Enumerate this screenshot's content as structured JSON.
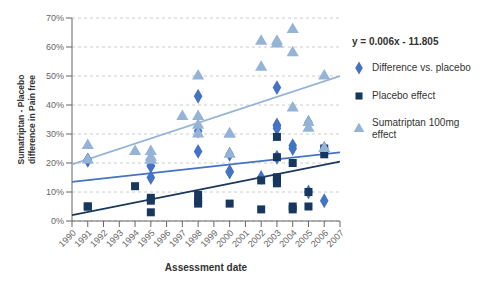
{
  "chart_data": {
    "type": "scatter",
    "xlabel": "Assessment date",
    "ylabel": "Sumatriptan - Placebo difference in Pain free",
    "xlim": [
      1990,
      2007
    ],
    "xticks": [
      1990,
      1991,
      1992,
      1993,
      1994,
      1995,
      1996,
      1997,
      1998,
      1999,
      2000,
      2001,
      2002,
      2003,
      2004,
      2005,
      2006,
      2007
    ],
    "ylim": [
      0,
      0.7
    ],
    "yticks": [
      {
        "value": 0.0,
        "label": "0%"
      },
      {
        "value": 0.1,
        "label": "10%"
      },
      {
        "value": 0.2,
        "label": "20%"
      },
      {
        "value": 0.3,
        "label": "30%"
      },
      {
        "value": 0.4,
        "label": "40%"
      },
      {
        "value": 0.5,
        "label": "50%"
      },
      {
        "value": 0.6,
        "label": "60%"
      },
      {
        "value": 0.7,
        "label": "70%"
      }
    ],
    "grid": true,
    "legend": "right",
    "annotations": [
      "y = 0.006x - 11.805"
    ],
    "series": [
      {
        "name": "Difference vs. placebo",
        "color": "#4472c4",
        "marker": "diamond",
        "x": [
          1991,
          1991,
          1995,
          1995,
          1995,
          1995,
          1998,
          1998,
          1998,
          2000,
          2000,
          2000,
          2002,
          2003,
          2003,
          2003,
          2003,
          2003,
          2004,
          2004,
          2005,
          2005,
          2006,
          2006
        ],
        "values": [
          0.21,
          0.21,
          0.21,
          0.15,
          0.19,
          0.19,
          0.43,
          0.31,
          0.24,
          0.17,
          0.17,
          0.23,
          0.15,
          0.33,
          0.33,
          0.32,
          0.22,
          0.46,
          0.26,
          0.25,
          0.34,
          0.1,
          0.25,
          0.07
        ]
      },
      {
        "name": "Placebo effect",
        "color": "#17375e",
        "marker": "square",
        "x": [
          1991,
          1991,
          1994,
          1995,
          1995,
          1995,
          1998,
          1998,
          1998,
          2000,
          2002,
          2002,
          2003,
          2003,
          2003,
          2003,
          2003,
          2003,
          2004,
          2004,
          2004,
          2005,
          2005,
          2006,
          2006
        ],
        "values": [
          0.05,
          0.05,
          0.12,
          0.08,
          0.07,
          0.03,
          0.09,
          0.07,
          0.06,
          0.06,
          0.04,
          0.14,
          0.13,
          0.29,
          0.14,
          0.15,
          0.22,
          0.15,
          0.2,
          0.05,
          0.04,
          0.05,
          0.1,
          0.23,
          0.25
        ]
      },
      {
        "name": "Sumatriptan 100mg\neffect",
        "color": "#95b3d7",
        "marker": "triangle",
        "x": [
          1991,
          1991,
          1994,
          1995,
          1995,
          1995,
          1995,
          1997,
          1998,
          1998,
          1998,
          1998,
          2000,
          2000,
          2000,
          2002,
          2002,
          2003,
          2003,
          2004,
          2004,
          2004,
          2005,
          2005,
          2006,
          2006
        ],
        "values": [
          0.26,
          0.21,
          0.24,
          0.21,
          0.22,
          0.24,
          0.21,
          0.36,
          0.5,
          0.36,
          0.33,
          0.3,
          0.3,
          0.23,
          0.3,
          0.62,
          0.53,
          0.61,
          0.62,
          0.66,
          0.58,
          0.39,
          0.34,
          0.32,
          0.5,
          0.25
        ]
      },
      {
        "type": "line",
        "color": "#95b3d7",
        "x": [
          1990,
          2007
        ],
        "values": [
          0.195,
          0.5
        ]
      },
      {
        "type": "line",
        "color": "#4472c4",
        "x": [
          1990,
          2007
        ],
        "values": [
          0.135,
          0.237
        ]
      },
      {
        "type": "line",
        "color": "#17375e",
        "x": [
          1990,
          2007
        ],
        "values": [
          0.02,
          0.205
        ]
      }
    ]
  }
}
